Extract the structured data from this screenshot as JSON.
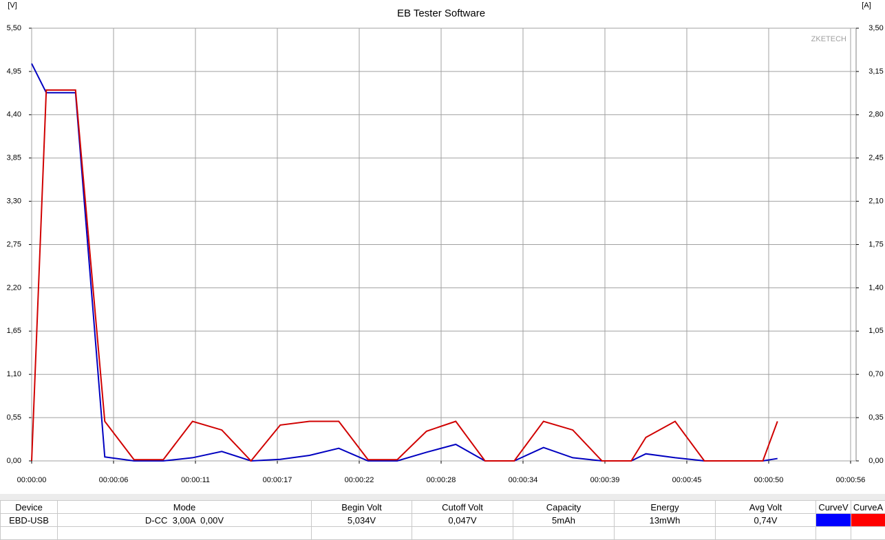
{
  "chart_data": {
    "type": "line",
    "title": "EB Tester Software",
    "y_label": "[V]",
    "y2_label": "[A]",
    "watermark": "ZKETECH",
    "x": [
      0,
      1,
      3,
      5,
      7,
      9,
      11,
      13,
      15,
      17,
      19,
      21,
      23,
      25,
      27,
      29,
      31,
      33,
      35,
      37,
      39,
      41,
      42,
      44,
      46,
      48,
      50,
      51
    ],
    "xlim": [
      0,
      56
    ],
    "xticks": [
      {
        "value": 0,
        "label": "00:00:00"
      },
      {
        "value": 5.6,
        "label": "00:00:06"
      },
      {
        "value": 11.2,
        "label": "00:00:11"
      },
      {
        "value": 16.8,
        "label": "00:00:17"
      },
      {
        "value": 22.4,
        "label": "00:00:22"
      },
      {
        "value": 28,
        "label": "00:00:28"
      },
      {
        "value": 33.6,
        "label": "00:00:34"
      },
      {
        "value": 39.2,
        "label": "00:00:39"
      },
      {
        "value": 44.8,
        "label": "00:00:45"
      },
      {
        "value": 50.4,
        "label": "00:00:50"
      },
      {
        "value": 56,
        "label": "00:00:56"
      }
    ],
    "ylim": [
      0,
      5.5
    ],
    "yticks": [
      {
        "value": 0,
        "label": "0,00"
      },
      {
        "value": 0.55,
        "label": "0,55"
      },
      {
        "value": 1.1,
        "label": "1,10"
      },
      {
        "value": 1.65,
        "label": "1,65"
      },
      {
        "value": 2.2,
        "label": "2,20"
      },
      {
        "value": 2.75,
        "label": "2,75"
      },
      {
        "value": 3.3,
        "label": "3,30"
      },
      {
        "value": 3.85,
        "label": "3,85"
      },
      {
        "value": 4.4,
        "label": "4,40"
      },
      {
        "value": 4.95,
        "label": "4,95"
      },
      {
        "value": 5.5,
        "label": "5,50"
      }
    ],
    "y2lim": [
      0,
      3.5
    ],
    "y2ticks": [
      {
        "value": 0,
        "label": "0,00"
      },
      {
        "value": 0.35,
        "label": "0,35"
      },
      {
        "value": 0.7,
        "label": "0,70"
      },
      {
        "value": 1.05,
        "label": "1,05"
      },
      {
        "value": 1.4,
        "label": "1,40"
      },
      {
        "value": 1.75,
        "label": "1,75"
      },
      {
        "value": 2.1,
        "label": "2,10"
      },
      {
        "value": 2.45,
        "label": "2,45"
      },
      {
        "value": 2.8,
        "label": "2,80"
      },
      {
        "value": 3.15,
        "label": "3,15"
      },
      {
        "value": 3.5,
        "label": "3,50"
      }
    ],
    "grid": true,
    "series": [
      {
        "name": "CurveV",
        "color": "#0000ff",
        "line_color": "#0000c0",
        "values": [
          5.05,
          4.68,
          4.68,
          0.05,
          0.0,
          0.0,
          0.04,
          0.12,
          0.0,
          0.02,
          0.07,
          0.16,
          0.0,
          0.0,
          0.11,
          0.21,
          0.0,
          0.0,
          0.17,
          0.04,
          0.0,
          0.0,
          0.09,
          0.04,
          0.0,
          0.0,
          0.0,
          0.03
        ]
      },
      {
        "name": "CurveA",
        "color": "#ff0000",
        "line_color": "#d00000",
        "axis": "y2",
        "values": [
          0,
          3.0,
          3.0,
          0.32,
          0.01,
          0.01,
          0.32,
          0.25,
          0.0,
          0.29,
          0.32,
          0.32,
          0.01,
          0.01,
          0.24,
          0.32,
          0.0,
          0.0,
          0.32,
          0.25,
          0.0,
          0.0,
          0.19,
          0.32,
          0.0,
          0.0,
          0.0,
          0.32
        ]
      }
    ]
  },
  "table": {
    "headers": [
      "Device",
      "Mode",
      "Begin Volt",
      "Cutoff Volt",
      "Capacity",
      "Energy",
      "Avg Volt"
    ],
    "rows": [
      [
        "EBD-USB",
        "D-CC  3,00A  0,00V",
        "5,034V",
        "0,047V",
        "5mAh",
        "13mWh",
        "0,74V"
      ]
    ]
  }
}
